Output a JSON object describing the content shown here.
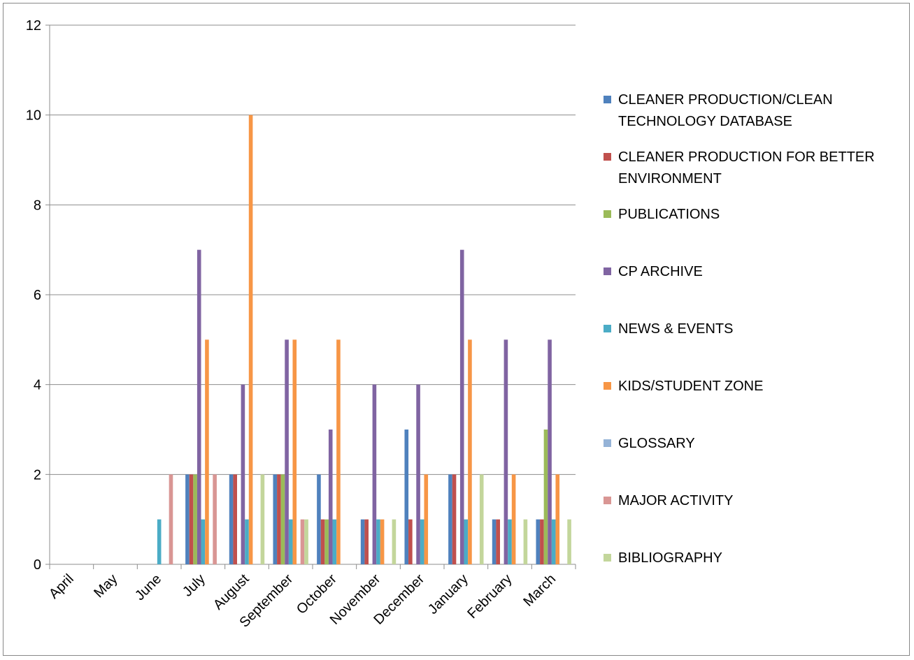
{
  "chart_data": {
    "type": "bar",
    "title": "",
    "xlabel": "",
    "ylabel": "",
    "ylim": [
      0,
      12
    ],
    "y_ticks": [
      0,
      2,
      4,
      6,
      8,
      10,
      12
    ],
    "grid": "horizontal",
    "legend_position": "right",
    "categories": [
      "April",
      "May",
      "June",
      "July",
      "August",
      "September",
      "October",
      "November",
      "December",
      "January",
      "February",
      "March"
    ],
    "series": [
      {
        "name": "CLEANER PRODUCTION/CLEAN TECHNOLOGY DATABASE",
        "legend_lines": [
          "CLEANER PRODUCTION/CLEAN",
          "TECHNOLOGY DATABASE"
        ],
        "color": "#4F81BD",
        "values": [
          0,
          0,
          0,
          2,
          2,
          2,
          2,
          1,
          3,
          2,
          1,
          1
        ]
      },
      {
        "name": "CLEANER PRODUCTION FOR BETTER ENVIRONMENT",
        "legend_lines": [
          "CLEANER PRODUCTION FOR BETTER",
          "ENVIRONMENT"
        ],
        "color": "#C0504D",
        "values": [
          0,
          0,
          0,
          2,
          2,
          2,
          1,
          1,
          1,
          2,
          1,
          1
        ]
      },
      {
        "name": "PUBLICATIONS",
        "legend_lines": [
          "PUBLICATIONS"
        ],
        "color": "#9BBB59",
        "values": [
          0,
          0,
          0,
          2,
          0,
          2,
          1,
          0,
          0,
          0,
          0,
          3
        ]
      },
      {
        "name": "CP ARCHIVE",
        "legend_lines": [
          "CP ARCHIVE"
        ],
        "color": "#8064A2",
        "values": [
          0,
          0,
          0,
          7,
          4,
          5,
          3,
          4,
          4,
          7,
          5,
          5
        ]
      },
      {
        "name": "NEWS & EVENTS",
        "legend_lines": [
          "NEWS & EVENTS"
        ],
        "color": "#4BACC6",
        "values": [
          0,
          0,
          1,
          1,
          1,
          1,
          1,
          1,
          1,
          1,
          1,
          1
        ]
      },
      {
        "name": "KIDS/STUDENT ZONE",
        "legend_lines": [
          "KIDS/STUDENT ZONE"
        ],
        "color": "#F79646",
        "values": [
          0,
          0,
          0,
          5,
          10,
          5,
          5,
          1,
          2,
          5,
          2,
          2
        ]
      },
      {
        "name": "GLOSSARY",
        "legend_lines": [
          "GLOSSARY"
        ],
        "color": "#95B3D7",
        "values": [
          0,
          0,
          0,
          0,
          0,
          0,
          0,
          0,
          0,
          0,
          0,
          0
        ]
      },
      {
        "name": "MAJOR ACTIVITY",
        "legend_lines": [
          "MAJOR ACTIVITY"
        ],
        "color": "#D99694",
        "values": [
          0,
          0,
          2,
          2,
          0,
          1,
          0,
          0,
          0,
          0,
          0,
          0
        ]
      },
      {
        "name": "BIBLIOGRAPHY",
        "legend_lines": [
          "BIBLIOGRAPHY"
        ],
        "color": "#C3D69B",
        "values": [
          0,
          0,
          0,
          0,
          2,
          1,
          0,
          1,
          0,
          2,
          1,
          1
        ]
      }
    ]
  }
}
